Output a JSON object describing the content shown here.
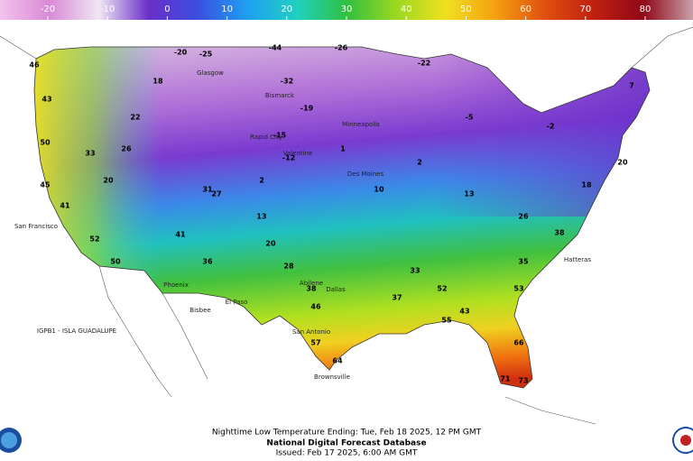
{
  "colorbar": {
    "range": [
      -28,
      88
    ],
    "colors": [
      "#f4c2ec",
      "#d98ad6",
      "#f0e6f4",
      "#6a2fc8",
      "#3a4fe0",
      "#1ea0f0",
      "#20d0c0",
      "#30c040",
      "#9ad820",
      "#f0e020",
      "#f5a010",
      "#e05010",
      "#c02010",
      "#900818",
      "#c8a0a8"
    ],
    "ticks": [
      -20,
      -10,
      0,
      10,
      20,
      30,
      40,
      50,
      60,
      70,
      80
    ]
  },
  "readings": [
    46,
    43,
    50,
    45,
    41,
    52,
    50,
    33,
    20,
    26,
    22,
    18,
    -20,
    -25,
    -44,
    -26,
    -22,
    -32,
    -19,
    -15,
    -12,
    2,
    13,
    20,
    28,
    38,
    46,
    57,
    64,
    33,
    52,
    55,
    43,
    66,
    71,
    73,
    38,
    26,
    13,
    2,
    -5,
    -2,
    7,
    20,
    18,
    35,
    53,
    37,
    10,
    1,
    31,
    36,
    41,
    27
  ],
  "places": [
    "San Francisco",
    "Phoenix",
    "Bisbee",
    "El Paso",
    "Abilene",
    "Dallas",
    "San Antonio",
    "Brownsville",
    "Bismarck",
    "Rapid City",
    "Minneapolis",
    "Des Moines",
    "Hatteras",
    "Glasgow",
    "Valentine"
  ],
  "station": "IGPB1 - ISLA GUADALUPE",
  "footer": {
    "line1": "Nighttime Low Temperature Ending: Tue, Feb 18 2025, 12 PM GMT",
    "line2": "National Digital Forecast Database",
    "line3": "Issued: Feb 17 2025, 6:00 AM GMT"
  }
}
